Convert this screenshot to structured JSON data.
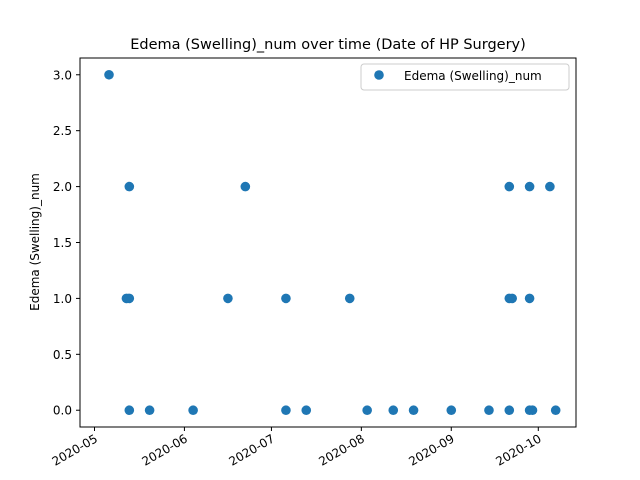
{
  "chart_data": {
    "type": "scatter",
    "title": "Edema (Swelling)_num over time (Date of HP Surgery)",
    "xlabel": "",
    "ylabel": "Edema (Swelling)_num",
    "xlim": [
      "2020-04-26",
      "2020-10-14"
    ],
    "ylim": [
      -0.15,
      3.15
    ],
    "x_ticks": [
      "2020-05-01",
      "2020-06-01",
      "2020-07-01",
      "2020-08-01",
      "2020-09-01",
      "2020-10-01"
    ],
    "x_tick_labels": [
      "2020-05",
      "2020-06",
      "2020-07",
      "2020-08",
      "2020-09",
      "2020-10"
    ],
    "y_ticks": [
      0.0,
      0.5,
      1.0,
      1.5,
      2.0,
      2.5,
      3.0
    ],
    "y_tick_labels": [
      "0.0",
      "0.5",
      "1.0",
      "1.5",
      "2.0",
      "2.5",
      "3.0"
    ],
    "grid": false,
    "legend_position": "top-right",
    "series": [
      {
        "name": "Edema (Swelling)_num",
        "color": "#1f77b4",
        "points": [
          {
            "x": "2020-05-06",
            "y": 3
          },
          {
            "x": "2020-05-12",
            "y": 1
          },
          {
            "x": "2020-05-13",
            "y": 1
          },
          {
            "x": "2020-05-13",
            "y": 2
          },
          {
            "x": "2020-05-13",
            "y": 0
          },
          {
            "x": "2020-05-20",
            "y": 0
          },
          {
            "x": "2020-06-04",
            "y": 0
          },
          {
            "x": "2020-06-16",
            "y": 1
          },
          {
            "x": "2020-06-22",
            "y": 2
          },
          {
            "x": "2020-07-06",
            "y": 1
          },
          {
            "x": "2020-07-06",
            "y": 0
          },
          {
            "x": "2020-07-13",
            "y": 0
          },
          {
            "x": "2020-07-28",
            "y": 1
          },
          {
            "x": "2020-08-03",
            "y": 0
          },
          {
            "x": "2020-08-12",
            "y": 0
          },
          {
            "x": "2020-08-19",
            "y": 0
          },
          {
            "x": "2020-09-01",
            "y": 0
          },
          {
            "x": "2020-09-14",
            "y": 0
          },
          {
            "x": "2020-09-21",
            "y": 2
          },
          {
            "x": "2020-09-21",
            "y": 1
          },
          {
            "x": "2020-09-22",
            "y": 1
          },
          {
            "x": "2020-09-21",
            "y": 0
          },
          {
            "x": "2020-09-28",
            "y": 2
          },
          {
            "x": "2020-09-28",
            "y": 1
          },
          {
            "x": "2020-09-28",
            "y": 0
          },
          {
            "x": "2020-09-29",
            "y": 0
          },
          {
            "x": "2020-10-05",
            "y": 2
          },
          {
            "x": "2020-10-07",
            "y": 0
          }
        ]
      }
    ]
  }
}
